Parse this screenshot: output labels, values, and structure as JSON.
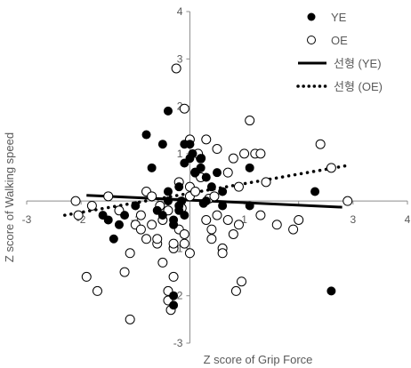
{
  "chart_data": {
    "type": "scatter",
    "xlabel": "Z score of Grip Force",
    "ylabel": "Z score of Walking speed",
    "xlim": [
      -3,
      4
    ],
    "ylim": [
      -3,
      4
    ],
    "xticks": [
      "-3",
      "-2",
      "-1",
      "0",
      "1",
      "2",
      "3",
      "4"
    ],
    "yticks": [
      "-3",
      "-2",
      "-1",
      "0",
      "1",
      "2",
      "3",
      "4"
    ],
    "grid": false,
    "legend_position": "top-right",
    "series": [
      {
        "name": "YE",
        "marker": "filled-circle",
        "color": "#000000",
        "points": [
          [
            -1.6,
            -0.3
          ],
          [
            -1.5,
            -0.4
          ],
          [
            -1.4,
            -0.8
          ],
          [
            -1.3,
            -0.5
          ],
          [
            -1.2,
            -0.3
          ],
          [
            -1.0,
            -0.1
          ],
          [
            -0.8,
            1.4
          ],
          [
            -0.7,
            0.7
          ],
          [
            -0.6,
            -0.2
          ],
          [
            -0.5,
            -0.3
          ],
          [
            -0.5,
            1.2
          ],
          [
            -0.4,
            1.9
          ],
          [
            -0.4,
            0.2
          ],
          [
            -0.4,
            0.0
          ],
          [
            -0.3,
            -0.5
          ],
          [
            -0.3,
            -0.4
          ],
          [
            -0.2,
            -0.2
          ],
          [
            -0.2,
            -0.1
          ],
          [
            -0.3,
            -2.2
          ],
          [
            -0.2,
            0.3
          ],
          [
            -0.15,
            0.0
          ],
          [
            -0.1,
            1.2
          ],
          [
            -0.1,
            0.8
          ],
          [
            0.0,
            1.2
          ],
          [
            0.0,
            0.9
          ],
          [
            0.1,
            0.6
          ],
          [
            0.2,
            0.9
          ],
          [
            0.2,
            0.7
          ],
          [
            0.3,
            0.5
          ],
          [
            0.3,
            0.0
          ],
          [
            0.4,
            0.3
          ],
          [
            0.5,
            0.6
          ],
          [
            0.6,
            0.2
          ],
          [
            0.6,
            -0.1
          ],
          [
            -0.3,
            -2.0
          ],
          [
            -0.1,
            -0.3
          ],
          [
            1.1,
            0.7
          ],
          [
            1.1,
            -0.1
          ],
          [
            2.3,
            0.2
          ],
          [
            2.6,
            -1.9
          ],
          [
            0.05,
            1.0
          ],
          [
            0.25,
            -0.05
          ]
        ]
      },
      {
        "name": "OE",
        "marker": "open-circle",
        "color": "#000000",
        "points": [
          [
            -0.25,
            2.8
          ],
          [
            -0.1,
            1.95
          ],
          [
            -2.1,
            0.0
          ],
          [
            -1.8,
            -0.1
          ],
          [
            -1.5,
            0.1
          ],
          [
            -1.3,
            -0.2
          ],
          [
            -1.2,
            -1.5
          ],
          [
            -1.1,
            -1.1
          ],
          [
            -1.0,
            -0.5
          ],
          [
            -0.9,
            -0.6
          ],
          [
            -0.9,
            -0.3
          ],
          [
            -0.8,
            -0.8
          ],
          [
            -0.8,
            0.2
          ],
          [
            -0.7,
            0.1
          ],
          [
            -0.7,
            -0.5
          ],
          [
            -0.6,
            -0.9
          ],
          [
            -0.6,
            -0.8
          ],
          [
            -0.5,
            -1.3
          ],
          [
            -0.5,
            -0.4
          ],
          [
            -0.4,
            -0.2
          ],
          [
            -0.4,
            -2.1
          ],
          [
            -0.3,
            -1.6
          ],
          [
            -0.3,
            -1.0
          ],
          [
            -0.3,
            -0.9
          ],
          [
            -0.2,
            -0.6
          ],
          [
            -0.2,
            0.4
          ],
          [
            -0.1,
            -0.7
          ],
          [
            -0.1,
            -0.9
          ],
          [
            0.0,
            0.1
          ],
          [
            0.0,
            0.3
          ],
          [
            0.0,
            1.3
          ],
          [
            0.1,
            0.6
          ],
          [
            0.1,
            0.2
          ],
          [
            0.2,
            0.5
          ],
          [
            0.2,
            0.9
          ],
          [
            0.3,
            1.3
          ],
          [
            0.3,
            -0.4
          ],
          [
            0.35,
            0.05
          ],
          [
            0.4,
            -0.6
          ],
          [
            0.4,
            -0.8
          ],
          [
            0.5,
            -0.3
          ],
          [
            0.5,
            1.1
          ],
          [
            0.6,
            -1.0
          ],
          [
            0.6,
            -1.1
          ],
          [
            0.7,
            -0.4
          ],
          [
            0.7,
            0.6
          ],
          [
            0.8,
            0.9
          ],
          [
            0.8,
            -0.7
          ],
          [
            0.9,
            0.3
          ],
          [
            0.9,
            -0.5
          ],
          [
            1.0,
            1.0
          ],
          [
            1.1,
            1.7
          ],
          [
            1.2,
            1.0
          ],
          [
            1.3,
            1.0
          ],
          [
            1.3,
            -0.3
          ],
          [
            1.4,
            0.4
          ],
          [
            1.6,
            -0.5
          ],
          [
            1.9,
            -0.6
          ],
          [
            2.0,
            -0.4
          ],
          [
            2.4,
            1.2
          ],
          [
            2.6,
            0.7
          ],
          [
            2.9,
            0.0
          ],
          [
            0.95,
            -1.7
          ],
          [
            0.85,
            -1.9
          ],
          [
            0.0,
            -1.1
          ],
          [
            -1.7,
            -1.9
          ],
          [
            -1.9,
            -1.6
          ],
          [
            -1.1,
            -2.5
          ],
          [
            -0.35,
            -2.3
          ],
          [
            -0.4,
            -1.9
          ],
          [
            -2.05,
            -0.3
          ],
          [
            -0.55,
            -0.1
          ],
          [
            0.15,
            1.0
          ],
          [
            -0.15,
            -0.15
          ],
          [
            0.45,
            0.1
          ]
        ]
      }
    ],
    "trendlines": [
      {
        "name": "선형 (YE)",
        "style": "solid",
        "color": "#000000",
        "x": [
          -1.9,
          2.8
        ],
        "y": [
          0.12,
          -0.13
        ]
      },
      {
        "name": "선형 (OE)",
        "style": "dotted",
        "color": "#000000",
        "x": [
          -2.3,
          2.9
        ],
        "y": [
          -0.3,
          0.75
        ]
      }
    ]
  }
}
